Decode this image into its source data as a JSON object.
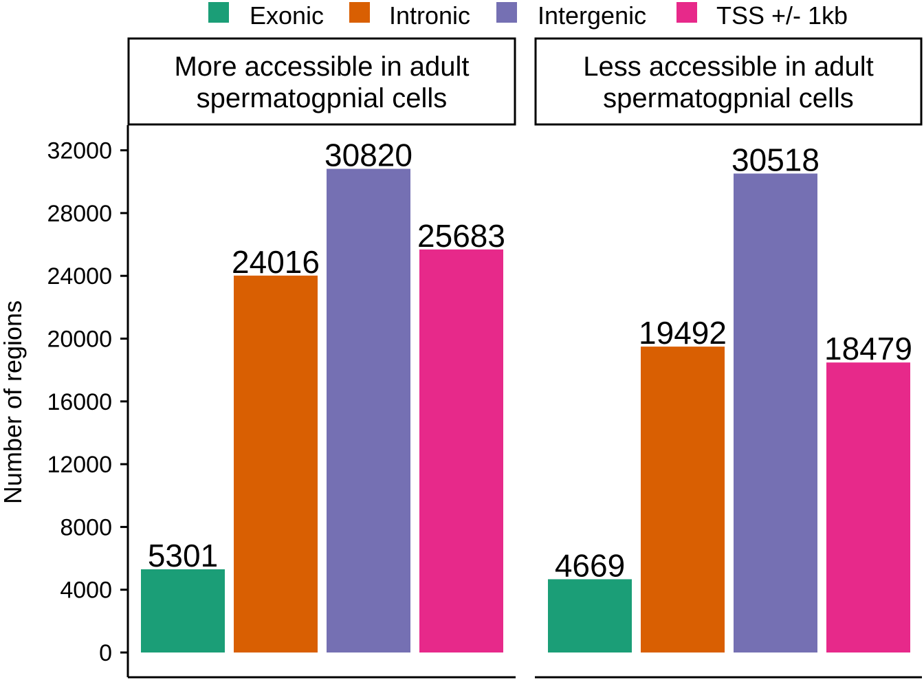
{
  "chart_data": {
    "type": "bar",
    "categories": [
      "Exonic",
      "Intronic",
      "Intergenic",
      "TSS +/- 1kb"
    ],
    "colors": [
      "#1b9e77",
      "#d95f02",
      "#7570b3",
      "#e7298a"
    ],
    "legend": {
      "placement": "top",
      "items": [
        "Exonic",
        "Intronic",
        "Intergenic",
        "TSS +/- 1kb"
      ]
    },
    "ylabel": "Number of regions",
    "ylim": [
      0,
      33500
    ],
    "yticks": [
      0,
      4000,
      8000,
      12000,
      16000,
      20000,
      24000,
      28000,
      32000
    ],
    "yticklabels": [
      "0",
      "4000",
      "8000",
      "12000",
      "16000",
      "20000",
      "24000",
      "28000",
      "32000"
    ],
    "grid": false,
    "panels": [
      {
        "title_lines": [
          "More accessible in adult",
          "spermatogpnial cells"
        ],
        "values": [
          5301,
          24016,
          30820,
          25683
        ],
        "labels": [
          "5301",
          "24016",
          "30820",
          "25683"
        ]
      },
      {
        "title_lines": [
          "Less accessible in adult",
          "spermatogpnial cells"
        ],
        "values": [
          4669,
          19492,
          30518,
          18479
        ],
        "labels": [
          "4669",
          "19492",
          "30518",
          "18479"
        ]
      }
    ]
  }
}
